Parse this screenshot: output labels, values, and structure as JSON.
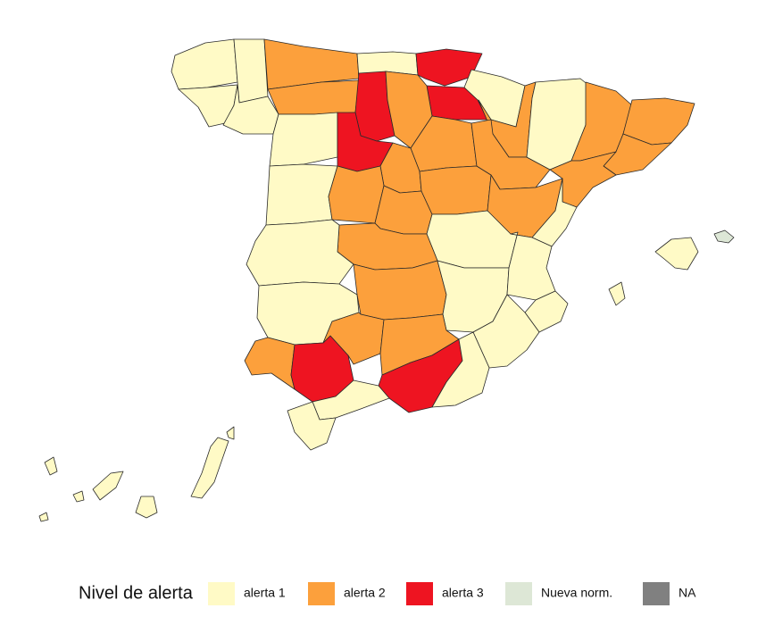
{
  "legend": {
    "title": "Nivel de alerta",
    "items": [
      {
        "label": "alerta 1",
        "color": "#fffac6"
      },
      {
        "label": "alerta 2",
        "color": "#fca03c"
      },
      {
        "label": "alerta 3",
        "color": "#ee1421"
      },
      {
        "label": "Nueva norm.",
        "color": "#dde7d6"
      },
      {
        "label": "NA",
        "color": "#808080"
      }
    ]
  }
}
